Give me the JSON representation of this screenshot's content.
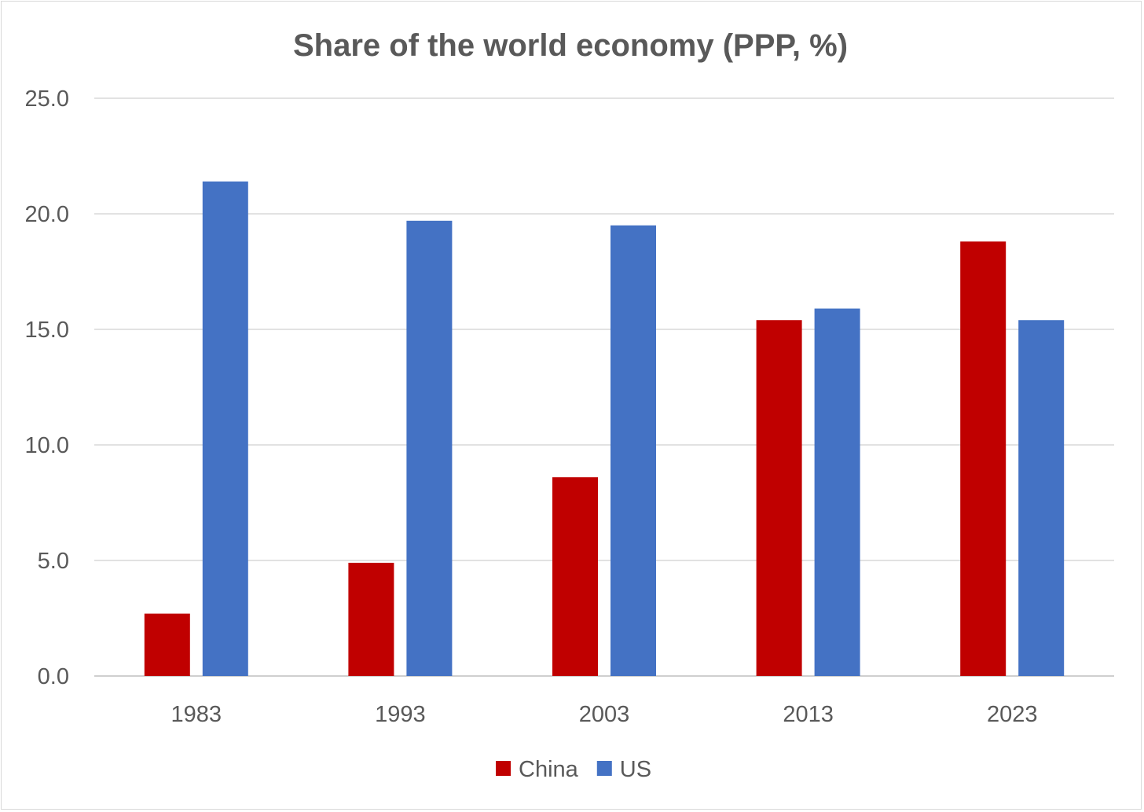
{
  "chart_data": {
    "type": "bar",
    "title": "Share of the world economy (PPP, %)",
    "xlabel": "",
    "ylabel": "",
    "categories": [
      "1983",
      "1993",
      "2003",
      "2013",
      "2023"
    ],
    "series": [
      {
        "name": "China",
        "color": "#c00000",
        "values": [
          2.7,
          4.9,
          8.6,
          15.4,
          18.8
        ]
      },
      {
        "name": "US",
        "color": "#4472c4",
        "values": [
          21.4,
          19.7,
          19.5,
          15.9,
          15.4
        ]
      }
    ],
    "ylim": [
      0,
      25
    ],
    "yticks": [
      "0.0",
      "5.0",
      "10.0",
      "15.0",
      "20.0",
      "25.0"
    ],
    "grid": true,
    "legend_position": "bottom"
  }
}
